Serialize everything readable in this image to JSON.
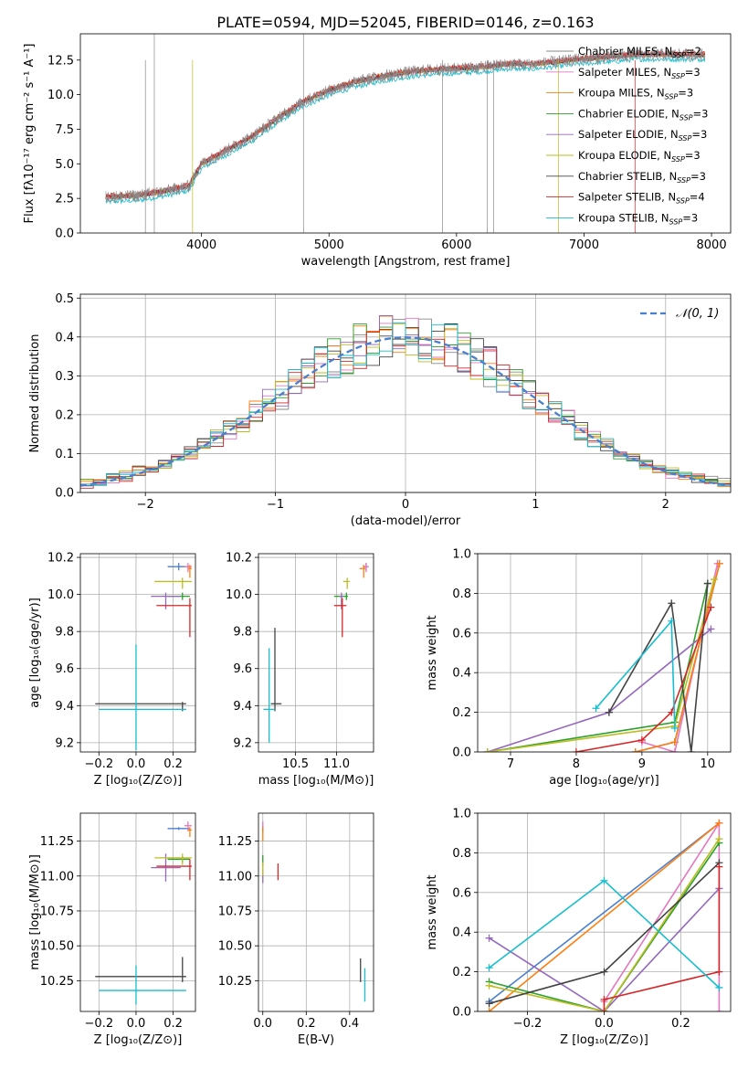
{
  "title": "PLATE=0594, MJD=52045, FIBERID=0146, z=0.163",
  "colors": {
    "chabrier_miles": "#8a8a8a",
    "salpeter_miles": "#e377c2",
    "kroupa_miles": "#ff7f0e",
    "chabrier_elodie": "#2ca02c",
    "salpeter_elodie": "#9467bd",
    "kroupa_elodie": "#bcbd22",
    "chabrier_stelib": "#444444",
    "salpeter_stelib": "#d62728",
    "kroupa_stelib": "#17becf",
    "normal": "#4a7fd0"
  },
  "chart_data": [
    {
      "id": "spectrum",
      "type": "line",
      "title": "PLATE=0594, MJD=52045, FIBERID=0146, z=0.163",
      "xlabel": "wavelength [Angstrom, rest frame]",
      "ylabel": "Flux [fλ10⁻¹⁷ erg cm⁻² s⁻¹ A⁻¹]",
      "xlim": [
        3050,
        8150
      ],
      "ylim": [
        0,
        14.4
      ],
      "xticks": [
        4000,
        5000,
        6000,
        7000,
        8000
      ],
      "yticks": [
        0.0,
        2.5,
        5.0,
        7.5,
        10.0,
        12.5
      ],
      "legend_placement": "upper-right",
      "legend": [
        {
          "label": "Chabrier MILES, N",
          "sub": "SSP",
          "suffix": "=2",
          "color": "#8a8a8a"
        },
        {
          "label": "Salpeter MILES, N",
          "sub": "SSP",
          "suffix": "=3",
          "color": "#e377c2"
        },
        {
          "label": "Kroupa MILES, N",
          "sub": "SSP",
          "suffix": "=3",
          "color": "#ff7f0e"
        },
        {
          "label": "Chabrier ELODIE, N",
          "sub": "SSP",
          "suffix": "=3",
          "color": "#2ca02c"
        },
        {
          "label": "Salpeter ELODIE, N",
          "sub": "SSP",
          "suffix": "=3",
          "color": "#9467bd"
        },
        {
          "label": "Kroupa ELODIE, N",
          "sub": "SSP",
          "suffix": "=3",
          "color": "#bcbd22"
        },
        {
          "label": "Chabrier STELIB, N",
          "sub": "SSP",
          "suffix": "=3",
          "color": "#444444"
        },
        {
          "label": "Salpeter STELIB, N",
          "sub": "SSP",
          "suffix": "=4",
          "color": "#d62728"
        },
        {
          "label": "Kroupa STELIB, N",
          "sub": "SSP",
          "suffix": "=3",
          "color": "#17becf"
        }
      ],
      "continuum": {
        "x": [
          3250,
          3500,
          3700,
          3900,
          4000,
          4200,
          4400,
          4600,
          4800,
          5000,
          5200,
          5400,
          5600,
          5800,
          6000,
          6200,
          6400,
          6600,
          6800,
          7000,
          7200,
          7400,
          7600,
          7800
        ],
        "y": [
          2.6,
          2.7,
          3.0,
          3.4,
          5.0,
          6.0,
          7.0,
          8.3,
          9.5,
          10.3,
          10.9,
          11.3,
          11.6,
          11.8,
          11.9,
          12.0,
          12.2,
          12.2,
          12.4,
          12.6,
          12.7,
          12.9,
          12.9,
          12.9
        ]
      }
    },
    {
      "id": "residuals",
      "type": "line",
      "xlabel": "(data-model)/error",
      "ylabel": "Normed distribution",
      "xlim": [
        -2.5,
        2.5
      ],
      "ylim": [
        0,
        0.51
      ],
      "xticks": [
        -2,
        -1,
        0,
        1,
        2
      ],
      "yticks": [
        0.0,
        0.1,
        0.2,
        0.3,
        0.4,
        0.5
      ],
      "grid": true,
      "legend_placement": "upper-right",
      "legend": [
        {
          "label": "𝒩(0, 1)",
          "color": "#4a7fd0",
          "style": "dashed"
        }
      ],
      "series": [
        {
          "name": "𝒩(0, 1)",
          "mu": 0,
          "sigma": 1
        }
      ]
    },
    {
      "id": "age_vs_Z",
      "type": "scatter",
      "xlabel": "Z [log₁₀(Z/Z⊙)]",
      "ylabel": "age  [log₁₀(age/yr)]",
      "xlim": [
        -0.3,
        0.32
      ],
      "ylim": [
        9.15,
        10.22
      ],
      "xticks": [
        -0.2,
        0.0,
        0.2
      ],
      "yticks": [
        9.2,
        9.4,
        9.6,
        9.8,
        10.0,
        10.2
      ],
      "grid": true,
      "points": [
        {
          "x": 0.23,
          "y": 10.15,
          "xerr": [
            0.06,
            0.06
          ],
          "yerr": [
            0.02,
            0.02
          ],
          "color": "#4a7fd0"
        },
        {
          "x": 0.28,
          "y": 10.15,
          "xerr": [
            0.02,
            0.02
          ],
          "yerr": [
            0.03,
            0.02
          ],
          "color": "#e377c2"
        },
        {
          "x": 0.29,
          "y": 10.14,
          "xerr": [
            0.01,
            0.01
          ],
          "yerr": [
            0.05,
            0.02
          ],
          "color": "#ff7f0e"
        },
        {
          "x": 0.25,
          "y": 9.99,
          "xerr": [
            0.08,
            0.04
          ],
          "yerr": [
            0.02,
            0.02
          ],
          "color": "#2ca02c"
        },
        {
          "x": 0.16,
          "y": 9.99,
          "xerr": [
            0.08,
            0.08
          ],
          "yerr": [
            0.07,
            0.02
          ],
          "color": "#9467bd"
        },
        {
          "x": 0.25,
          "y": 10.07,
          "xerr": [
            0.15,
            0.05
          ],
          "yerr": [
            0.04,
            0.02
          ],
          "color": "#bcbd22"
        },
        {
          "x": 0.25,
          "y": 9.41,
          "xerr": [
            0.47,
            0.02
          ],
          "yerr": [
            0.04,
            0.01
          ],
          "color": "#444444"
        },
        {
          "x": 0.29,
          "y": 9.94,
          "xerr": [
            0.18,
            0.01
          ],
          "yerr": [
            0.17,
            0.04
          ],
          "color": "#d62728"
        },
        {
          "x": 0.0,
          "y": 9.38,
          "xerr": [
            0.2,
            0.27
          ],
          "yerr": [
            0.22,
            0.35
          ],
          "color": "#17becf"
        }
      ]
    },
    {
      "id": "age_vs_mass",
      "type": "scatter",
      "xlabel": "mass [log₁₀(M/M⊙)]",
      "ylabel": "",
      "xlim": [
        10.05,
        11.45
      ],
      "ylim": [
        9.15,
        10.22
      ],
      "xticks": [
        10.5,
        11.0
      ],
      "yticks": [
        9.2,
        9.4,
        9.6,
        9.8,
        10.0,
        10.2
      ],
      "grid": true,
      "points": [
        {
          "x": 11.36,
          "y": 10.15,
          "xerr": [
            0.03,
            0.03
          ],
          "yerr": [
            0.02,
            0.02
          ],
          "color": "#4a7fd0"
        },
        {
          "x": 11.36,
          "y": 10.15,
          "xerr": [
            0.04,
            0.03
          ],
          "yerr": [
            0.03,
            0.02
          ],
          "color": "#e377c2"
        },
        {
          "x": 11.33,
          "y": 10.14,
          "xerr": [
            0.05,
            0.02
          ],
          "yerr": [
            0.05,
            0.02
          ],
          "color": "#ff7f0e"
        },
        {
          "x": 11.12,
          "y": 9.99,
          "xerr": [
            0.15,
            0.02
          ],
          "yerr": [
            0.02,
            0.02
          ],
          "color": "#2ca02c"
        },
        {
          "x": 11.06,
          "y": 9.99,
          "xerr": [
            0.02,
            0.02
          ],
          "yerr": [
            0.07,
            0.02
          ],
          "color": "#9467bd"
        },
        {
          "x": 11.13,
          "y": 10.07,
          "xerr": [
            0.05,
            0.03
          ],
          "yerr": [
            0.04,
            0.02
          ],
          "color": "#bcbd22"
        },
        {
          "x": 10.25,
          "y": 9.41,
          "xerr": [
            0.05,
            0.08
          ],
          "yerr": [
            0.04,
            0.41
          ],
          "color": "#444444"
        },
        {
          "x": 11.07,
          "y": 9.94,
          "xerr": [
            0.1,
            0.05
          ],
          "yerr": [
            0.17,
            0.04
          ],
          "color": "#d62728"
        },
        {
          "x": 10.18,
          "y": 9.38,
          "xerr": [
            0.07,
            0.07
          ],
          "yerr": [
            0.18,
            0.33
          ],
          "color": "#17becf"
        }
      ]
    },
    {
      "id": "weight_vs_age",
      "type": "line",
      "xlabel": "age  [log₁₀(age/yr)]",
      "ylabel": "mass weight",
      "xlim": [
        6.5,
        10.35
      ],
      "ylim": [
        0,
        1.0
      ],
      "xticks": [
        7,
        8,
        9,
        10
      ],
      "yticks": [
        0.0,
        0.2,
        0.4,
        0.6,
        0.8,
        1.0
      ],
      "grid": true,
      "series": [
        {
          "color": "#4a7fd0",
          "x": [
            8.9,
            9.5,
            10.18
          ],
          "y": [
            0.0,
            0.05,
            0.95
          ]
        },
        {
          "color": "#e377c2",
          "x": [
            9.0,
            9.5,
            10.15
          ],
          "y": [
            0.05,
            0.0,
            0.95
          ]
        },
        {
          "color": "#ff7f0e",
          "x": [
            8.9,
            9.5,
            10.18
          ],
          "y": [
            0.0,
            0.05,
            0.95
          ]
        },
        {
          "color": "#2ca02c",
          "x": [
            6.65,
            9.5,
            10.0
          ],
          "y": [
            0.0,
            0.15,
            0.85
          ]
        },
        {
          "color": "#9467bd",
          "x": [
            6.65,
            8.5,
            10.05
          ],
          "y": [
            0.0,
            0.2,
            0.62
          ]
        },
        {
          "color": "#bcbd22",
          "x": [
            6.65,
            9.5,
            10.1
          ],
          "y": [
            0.0,
            0.13,
            0.87
          ]
        },
        {
          "color": "#444444",
          "x": [
            8.5,
            9.45,
            9.75,
            10.0
          ],
          "y": [
            0.2,
            0.75,
            0.0,
            0.85
          ]
        },
        {
          "color": "#d62728",
          "x": [
            8.0,
            9.0,
            9.45,
            10.05
          ],
          "y": [
            0.0,
            0.06,
            0.2,
            0.73
          ]
        },
        {
          "color": "#17becf",
          "x": [
            8.3,
            9.45,
            9.5
          ],
          "y": [
            0.22,
            0.66,
            0.12
          ]
        }
      ]
    },
    {
      "id": "mass_vs_Z",
      "type": "scatter",
      "xlabel": "Z [log₁₀(Z/Z⊙)]",
      "ylabel": "mass [log₁₀(M/M⊙)]",
      "xlim": [
        -0.3,
        0.32
      ],
      "ylim": [
        10.03,
        11.45
      ],
      "xticks": [
        -0.2,
        0.0,
        0.2
      ],
      "yticks": [
        10.25,
        10.5,
        10.75,
        11.0,
        11.25
      ],
      "grid": true,
      "points": [
        {
          "x": 0.23,
          "y": 11.34,
          "xerr": [
            0.06,
            0.06
          ],
          "yerr": [
            0.01,
            0.01
          ],
          "color": "#4a7fd0"
        },
        {
          "x": 0.28,
          "y": 11.36,
          "xerr": [
            0.02,
            0.02
          ],
          "yerr": [
            0.04,
            0.03
          ],
          "color": "#e377c2"
        },
        {
          "x": 0.29,
          "y": 11.33,
          "xerr": [
            0.01,
            0.01
          ],
          "yerr": [
            0.05,
            0.02
          ],
          "color": "#ff7f0e"
        },
        {
          "x": 0.25,
          "y": 11.12,
          "xerr": [
            0.08,
            0.04
          ],
          "yerr": [
            0.02,
            0.02
          ],
          "color": "#2ca02c"
        },
        {
          "x": 0.16,
          "y": 11.06,
          "xerr": [
            0.08,
            0.08
          ],
          "yerr": [
            0.1,
            0.1
          ],
          "color": "#9467bd"
        },
        {
          "x": 0.25,
          "y": 11.13,
          "xerr": [
            0.15,
            0.05
          ],
          "yerr": [
            0.05,
            0.03
          ],
          "color": "#bcbd22"
        },
        {
          "x": 0.25,
          "y": 10.28,
          "xerr": [
            0.47,
            0.02
          ],
          "yerr": [
            0.04,
            0.14
          ],
          "color": "#444444"
        },
        {
          "x": 0.29,
          "y": 11.07,
          "xerr": [
            0.18,
            0.01
          ],
          "yerr": [
            0.1,
            0.05
          ],
          "color": "#d62728"
        },
        {
          "x": 0.0,
          "y": 10.18,
          "xerr": [
            0.2,
            0.27
          ],
          "yerr": [
            0.1,
            0.18
          ],
          "color": "#17becf"
        }
      ]
    },
    {
      "id": "mass_vs_ebv",
      "type": "scatter",
      "xlabel": "E(B-V)",
      "ylabel": "",
      "xlim": [
        -0.02,
        0.51
      ],
      "ylim": [
        10.03,
        11.45
      ],
      "xticks": [
        0.0,
        0.2,
        0.4
      ],
      "yticks": [
        10.25,
        10.5,
        10.75,
        11.0,
        11.25
      ],
      "grid": true,
      "points": [
        {
          "x": 0.0,
          "y": 11.34,
          "xerr": [
            0.0,
            0.0
          ],
          "yerr": [
            0.02,
            0.02
          ],
          "color": "#4a7fd0"
        },
        {
          "x": 0.0,
          "y": 11.36,
          "xerr": [
            0.0,
            0.0
          ],
          "yerr": [
            0.04,
            0.03
          ],
          "color": "#e377c2"
        },
        {
          "x": 0.0,
          "y": 11.3,
          "xerr": [
            0.0,
            0.0
          ],
          "yerr": [
            0.05,
            0.05
          ],
          "color": "#ff7f0e"
        },
        {
          "x": 0.0,
          "y": 11.12,
          "xerr": [
            0.0,
            0.0
          ],
          "yerr": [
            0.05,
            0.03
          ],
          "color": "#2ca02c"
        },
        {
          "x": 0.0,
          "y": 11.0,
          "xerr": [
            0.0,
            0.0
          ],
          "yerr": [
            0.05,
            0.05
          ],
          "color": "#9467bd"
        },
        {
          "x": 0.0,
          "y": 11.05,
          "xerr": [
            0.0,
            0.0
          ],
          "yerr": [
            0.05,
            0.05
          ],
          "color": "#bcbd22"
        },
        {
          "x": 0.45,
          "y": 10.3,
          "xerr": [
            0.0,
            0.0
          ],
          "yerr": [
            0.06,
            0.11
          ],
          "color": "#444444"
        },
        {
          "x": 0.07,
          "y": 11.03,
          "xerr": [
            0.0,
            0.0
          ],
          "yerr": [
            0.06,
            0.06
          ],
          "color": "#d62728"
        },
        {
          "x": 0.47,
          "y": 10.24,
          "xerr": [
            0.0,
            0.0
          ],
          "yerr": [
            0.14,
            0.1
          ],
          "color": "#17becf"
        }
      ]
    },
    {
      "id": "weight_vs_Z",
      "type": "line",
      "xlabel": "Z [log₁₀(Z/Z⊙)]",
      "ylabel": "mass weight",
      "xlim": [
        -0.33,
        0.33
      ],
      "ylim": [
        0,
        1.0
      ],
      "xticks": [
        -0.2,
        0.0,
        0.2
      ],
      "yticks": [
        0.0,
        0.2,
        0.4,
        0.6,
        0.8,
        1.0
      ],
      "grid": true,
      "series": [
        {
          "color": "#4a7fd0",
          "x": [
            -0.3,
            0.3
          ],
          "y": [
            0.05,
            0.95
          ]
        },
        {
          "color": "#e377c2",
          "x": [
            0.0,
            0.3,
            0.3
          ],
          "y": [
            0.05,
            0.95,
            0.0
          ]
        },
        {
          "color": "#ff7f0e",
          "x": [
            -0.3,
            0.3
          ],
          "y": [
            0.0,
            0.95
          ]
        },
        {
          "color": "#2ca02c",
          "x": [
            -0.3,
            0.0,
            0.3
          ],
          "y": [
            0.15,
            0.0,
            0.85
          ]
        },
        {
          "color": "#9467bd",
          "x": [
            -0.3,
            0.0,
            0.3
          ],
          "y": [
            0.37,
            0.0,
            0.62
          ]
        },
        {
          "color": "#bcbd22",
          "x": [
            -0.3,
            0.0,
            0.3
          ],
          "y": [
            0.13,
            0.0,
            0.87
          ]
        },
        {
          "color": "#444444",
          "x": [
            -0.3,
            0.0,
            0.3
          ],
          "y": [
            0.04,
            0.2,
            0.75
          ]
        },
        {
          "color": "#d62728",
          "x": [
            0.0,
            0.0,
            0.3,
            0.3
          ],
          "y": [
            0.0,
            0.06,
            0.2,
            0.73
          ]
        },
        {
          "color": "#17becf",
          "x": [
            -0.3,
            0.0,
            0.3
          ],
          "y": [
            0.22,
            0.66,
            0.12
          ]
        }
      ]
    }
  ]
}
